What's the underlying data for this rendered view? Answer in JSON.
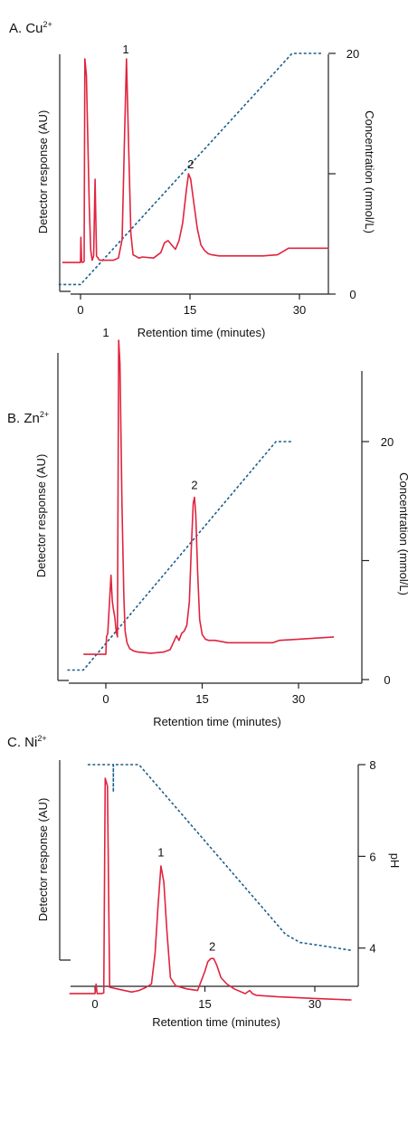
{
  "colors": {
    "trace": "#e0243e",
    "gradient": "#1b5f8c",
    "axis": "#222222"
  },
  "chart_data": [
    {
      "type": "line",
      "panel_label": "A. Cu",
      "panel_sup": "2+",
      "xlabel": "Retention time (minutes)",
      "ylabel": "Detector response (AU)",
      "y2label": "Concentration (mmol/L)",
      "xlim": [
        -3,
        34
      ],
      "y2lim": [
        0,
        20
      ],
      "xticks": [
        0,
        15,
        30
      ],
      "y2ticks": [
        0,
        10,
        20
      ],
      "y2ticklabels": [
        "0",
        "",
        "20"
      ],
      "series": [
        {
          "role": "detector",
          "x": [
            -2.5,
            0,
            0.05,
            0.15,
            0.3,
            0.5,
            0.6,
            0.8,
            1.0,
            1.2,
            1.4,
            1.6,
            1.8,
            2.0,
            2.2,
            2.6,
            3.5,
            4.5,
            5.2,
            5.7,
            6.0,
            6.3,
            6.6,
            6.9,
            7.2,
            7.5,
            8.0,
            8.5,
            10,
            11,
            11.5,
            12,
            12.5,
            13,
            13.5,
            14,
            14.5,
            14.8,
            15.1,
            15.5,
            16,
            16.5,
            17,
            17.5,
            18,
            19,
            20,
            22,
            25,
            27,
            28.5,
            30,
            32,
            34
          ],
          "y": [
            1.4,
            1.4,
            3.7,
            1.5,
            1.4,
            1.5,
            20.0,
            18.5,
            12.5,
            6.5,
            2.5,
            1.6,
            2.0,
            9.0,
            2.0,
            1.6,
            1.6,
            1.6,
            1.8,
            3.5,
            12.0,
            20.0,
            12.0,
            4.0,
            2.1,
            2.0,
            1.8,
            1.9,
            1.8,
            2.3,
            3.2,
            3.4,
            3.0,
            2.6,
            3.4,
            5.0,
            8.0,
            9.5,
            9.0,
            7.0,
            4.5,
            3.0,
            2.5,
            2.2,
            2.1,
            2.0,
            2.0,
            2.0,
            2.0,
            2.1,
            2.7,
            2.7,
            2.7,
            2.7
          ]
        },
        {
          "role": "gradient",
          "name": "Concentration",
          "x": [
            -3,
            0,
            29,
            30,
            33
          ],
          "y": [
            0.8,
            0.8,
            20,
            20,
            20
          ]
        }
      ],
      "annotations": [
        {
          "text": "1",
          "x": 6.2,
          "y": 20.5
        },
        {
          "text": "2",
          "x": 15.1,
          "y": 10.0
        }
      ]
    },
    {
      "type": "line",
      "panel_label": "B. Zn",
      "panel_sup": "2+",
      "xlabel": "Retention time (minutes)",
      "ylabel": "Detector response (AU)",
      "y2label": "Concentration (mmol/L)",
      "xlim": [
        -6,
        36
      ],
      "y2lim": [
        0,
        20
      ],
      "xticks": [
        0,
        15,
        30
      ],
      "y2ticks": [
        0,
        10,
        20
      ],
      "y2ticklabels": [
        "0",
        "",
        "20"
      ],
      "series": [
        {
          "role": "detector",
          "x": [
            -3.5,
            0,
            0.1,
            0.3,
            0.8,
            1.0,
            1.2,
            1.4,
            1.6,
            1.8,
            2.0,
            2.2,
            2.5,
            2.8,
            3.0,
            3.3,
            3.7,
            4.3,
            5,
            7,
            9,
            10,
            10.5,
            11,
            11.4,
            11.8,
            12.2,
            12.6,
            13,
            13.3,
            13.6,
            13.8,
            14.0,
            14.3,
            14.6,
            15,
            15.5,
            16,
            17,
            19,
            22,
            25,
            26,
            27,
            30,
            33,
            35.5
          ],
          "y": [
            1.0,
            1.0,
            2.5,
            2.8,
            7.8,
            5.6,
            4.8,
            4.2,
            3.0,
            2.5,
            28.0,
            26.0,
            14.0,
            6.0,
            3.0,
            2.0,
            1.5,
            1.3,
            1.2,
            1.1,
            1.2,
            1.4,
            2.0,
            2.6,
            2.2,
            2.8,
            3.0,
            3.5,
            5.5,
            10.0,
            14.0,
            14.5,
            13.0,
            8.0,
            4.0,
            2.7,
            2.3,
            2.2,
            2.2,
            2.0,
            2.0,
            2.0,
            2.0,
            2.2,
            2.3,
            2.4,
            2.5
          ]
        },
        {
          "role": "gradient",
          "name": "Concentration",
          "x": [
            -6,
            -3.5,
            26.5,
            27,
            29
          ],
          "y": [
            0.8,
            0.8,
            20,
            20,
            20
          ]
        }
      ],
      "annotations": [
        {
          "text": "1",
          "x": 0.0,
          "y": 28.3
        },
        {
          "text": "2",
          "x": 13.8,
          "y": 15.2
        }
      ]
    },
    {
      "type": "line",
      "panel_label": "C. Ni",
      "panel_sup": "2+",
      "xlabel": "Retention time (minutes)",
      "ylabel": "Detector response (AU)",
      "y2label": "pH",
      "xlim": [
        -4,
        35
      ],
      "y2lim": [
        3.6,
        8.0
      ],
      "xticks": [
        0,
        15,
        30
      ],
      "y2ticks": [
        4,
        6,
        8
      ],
      "y2ticklabels": [
        "4",
        "6",
        "8"
      ],
      "series": [
        {
          "role": "detector",
          "x": [
            -3.5,
            -0.5,
            0,
            0.15,
            0.3,
            0.6,
            0.9,
            1.2,
            1.4,
            1.7,
            2,
            3,
            5,
            6,
            7,
            7.7,
            8.2,
            8.6,
            9.0,
            9.4,
            9.8,
            10.3,
            11.0,
            12.5,
            14,
            15,
            15.4,
            15.8,
            16.2,
            16.6,
            17.2,
            18,
            19,
            20.5,
            21.1,
            21.5,
            22,
            25,
            30,
            35
          ],
          "y": [
            3.0,
            3.0,
            3.0,
            3.6,
            3.0,
            3.0,
            3.0,
            3.05,
            16.5,
            16.0,
            3.4,
            3.3,
            3.1,
            3.2,
            3.4,
            3.6,
            5.5,
            8.5,
            11.0,
            10.0,
            7.0,
            4.0,
            3.5,
            3.3,
            3.2,
            4.4,
            5.0,
            5.2,
            5.2,
            4.8,
            4.0,
            3.6,
            3.3,
            3.0,
            3.2,
            3.0,
            2.9,
            2.8,
            2.7,
            2.6
          ]
        },
        {
          "role": "gradient",
          "name": "pH",
          "x": [
            -1,
            2.5,
            2.5,
            2.5,
            2.5,
            2.5,
            6,
            26,
            28,
            31,
            33,
            35
          ],
          "y": [
            8.0,
            8.0,
            7.4,
            8.0,
            8.0,
            8.0,
            8.0,
            4.3,
            4.12,
            4.05,
            4.0,
            3.95
          ]
        }
      ],
      "annotations": [
        {
          "text": "1",
          "x": 9.0,
          "y": 11.6
        },
        {
          "text": "2",
          "x": 16.0,
          "y": 5.7
        }
      ]
    }
  ]
}
